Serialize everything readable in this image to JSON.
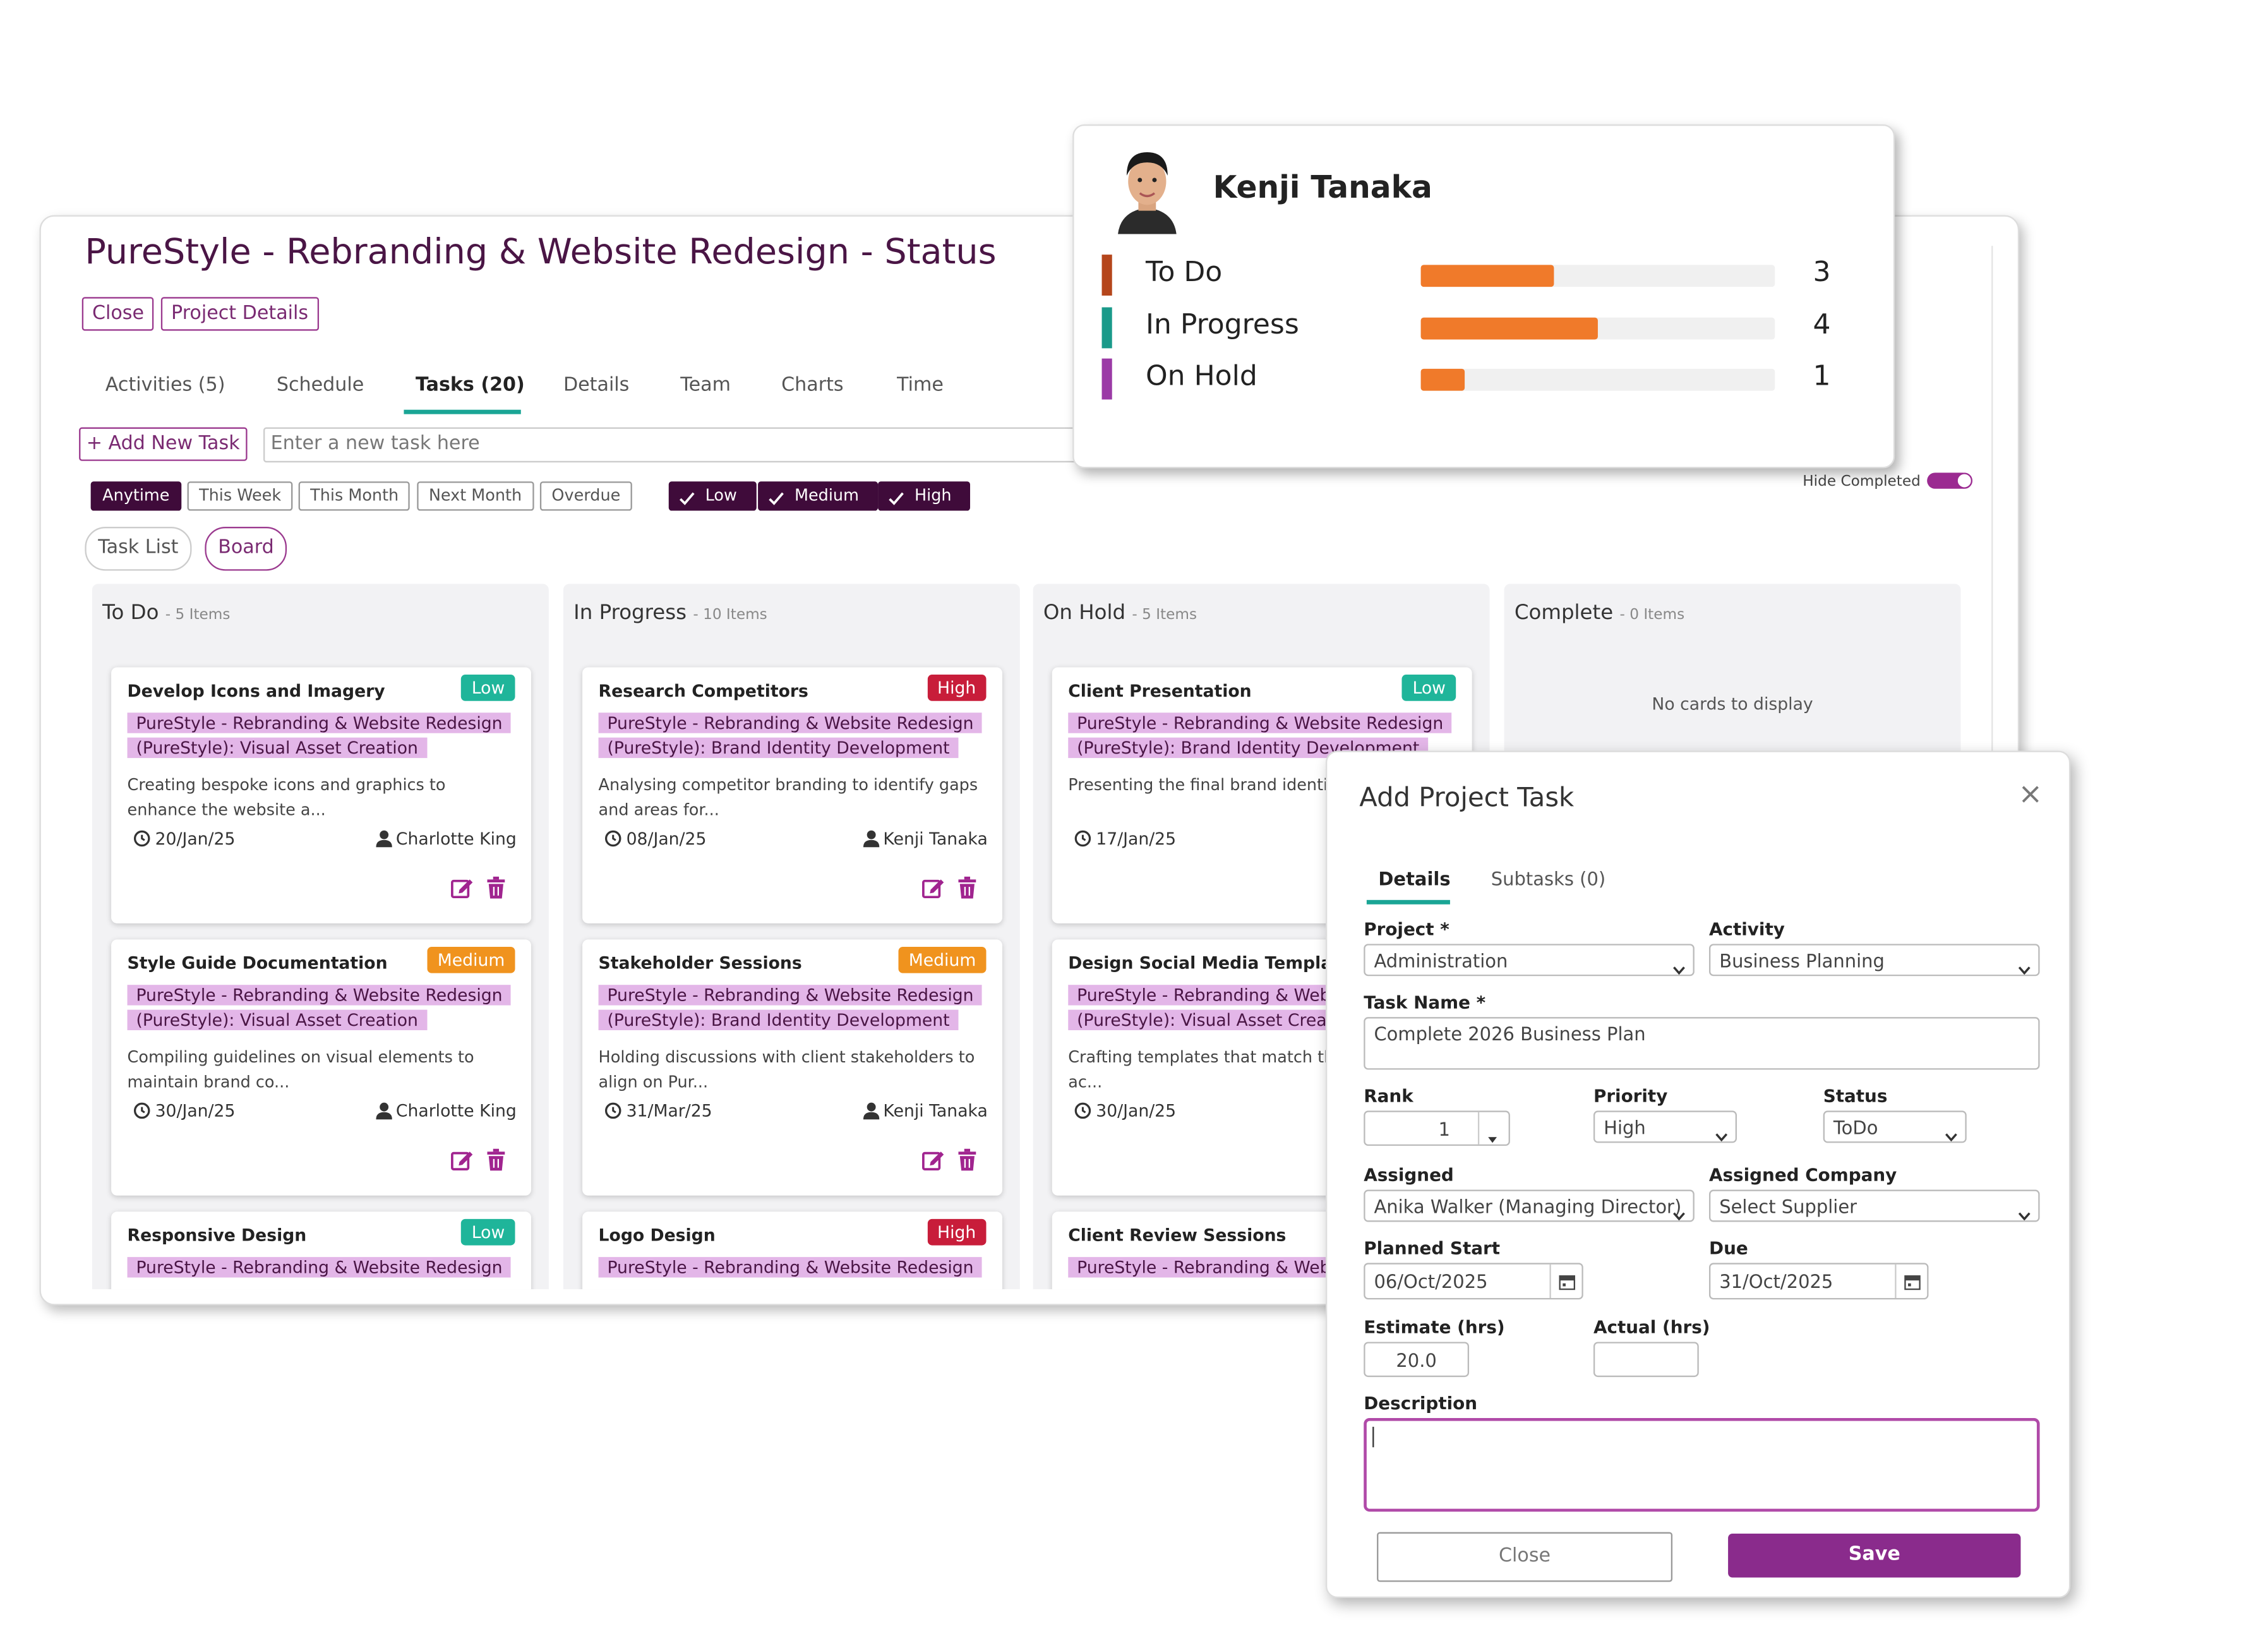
{
  "board": {
    "title": "PureStyle - Rebranding & Website Redesign - Status",
    "buttons": [
      "Close",
      "Project Details"
    ],
    "tabs": [
      "Activities (5)",
      "Schedule",
      "Tasks (20)",
      "Details",
      "Team",
      "Charts",
      "Time"
    ],
    "add_task": "+ Add New Task",
    "task_placeholder": "Enter a new task here",
    "date_filters": [
      "Anytime",
      "This Week",
      "This Month",
      "Next Month",
      "Overdue"
    ],
    "priority_filters": [
      "Low",
      "Medium",
      "High"
    ],
    "hide_completed": "Hide Completed",
    "views": [
      "Task List",
      "Board"
    ],
    "columns": [
      {
        "name": "To Do",
        "count": "- 5 Items",
        "cards": [
          {
            "title": "Develop Icons and Imagery",
            "priority": "Low",
            "project": "PureStyle - Rebranding & Website Redesign (PureStyle): Visual Asset Creation",
            "description": "Creating bespoke icons and graphics to enhance the website a...",
            "date": "20/Jan/25",
            "assignee": "Charlotte King"
          },
          {
            "title": "Style Guide Documentation",
            "priority": "Medium",
            "project": "PureStyle - Rebranding & Website Redesign (PureStyle): Visual Asset Creation",
            "description": "Compiling guidelines on visual elements to maintain brand co...",
            "date": "30/Jan/25",
            "assignee": "Charlotte King"
          },
          {
            "title": "Responsive Design",
            "priority": "Low",
            "project": "PureStyle - Rebranding & Website Redesign"
          }
        ]
      },
      {
        "name": "In Progress",
        "count": "- 10 Items",
        "cards": [
          {
            "title": "Research Competitors",
            "priority": "High",
            "project": "PureStyle - Rebranding & Website Redesign (PureStyle): Brand Identity Development",
            "description": "Analysing competitor branding to identify gaps and areas for...",
            "date": "08/Jan/25",
            "assignee": "Kenji Tanaka"
          },
          {
            "title": "Stakeholder Sessions",
            "priority": "Medium",
            "project": "PureStyle - Rebranding & Website Redesign (PureStyle): Brand Identity Development",
            "description": "Holding discussions with client stakeholders to align on Pur...",
            "date": "31/Mar/25",
            "assignee": "Kenji Tanaka"
          },
          {
            "title": "Logo Design",
            "priority": "High",
            "project": "PureStyle - Rebranding & Website Redesign"
          }
        ]
      },
      {
        "name": "On Hold",
        "count": "- 5 Items",
        "cards": [
          {
            "title": "Client Presentation",
            "priority": "Low",
            "project": "PureStyle - Rebranding & Website Redesign (PureStyle): Brand Identity Development",
            "description": "Presenting the final brand identity for feedbac...",
            "date": "17/Jan/25"
          },
          {
            "title": "Design Social Media Templates",
            "project": "PureStyle - Rebranding & Website Redesign (PureStyle): Visual Asset Creation",
            "description": "Crafting templates that match the style for use ac...",
            "date": "30/Jan/25"
          },
          {
            "title": "Client Review Sessions",
            "project": "PureStyle - Rebranding & Website Redesign"
          }
        ]
      },
      {
        "name": "Complete",
        "count": "- 0 Items",
        "empty": "No cards to display",
        "cards": []
      }
    ]
  },
  "person_card": {
    "name": "Kenji Tanaka",
    "stats": [
      {
        "label": "To Do",
        "value": 3,
        "color": "#b5461c"
      },
      {
        "label": "In Progress",
        "value": 4,
        "color": "#1a9a8a"
      },
      {
        "label": "On Hold",
        "value": 1,
        "color": "#9b3aa6"
      }
    ]
  },
  "modal": {
    "title": "Add Project Task",
    "close_icon": "×",
    "tabs": [
      "Details",
      "Subtasks (0)"
    ],
    "fields": [
      {
        "label": "Project *",
        "value": "Administration"
      },
      {
        "label": "Activity",
        "value": "Business Planning"
      },
      {
        "label": "Task Name *",
        "value": "Complete 2026 Business Plan"
      },
      {
        "label": "Rank",
        "value": "1"
      },
      {
        "label": "Priority",
        "value": "High"
      },
      {
        "label": "Status",
        "value": "ToDo"
      },
      {
        "label": "Assigned",
        "value": "Anika Walker (Managing Director)"
      },
      {
        "label": "Assigned Company",
        "value": "Select Supplier"
      },
      {
        "label": "Planned Start",
        "value": "06/Oct/2025"
      },
      {
        "label": "Due",
        "value": "31/Oct/2025"
      },
      {
        "label": "Estimate (hrs)",
        "value": "20.0"
      },
      {
        "label": "Actual (hrs)"
      },
      {
        "label": "Description"
      }
    ],
    "buttons": [
      "Close",
      "Save"
    ]
  }
}
